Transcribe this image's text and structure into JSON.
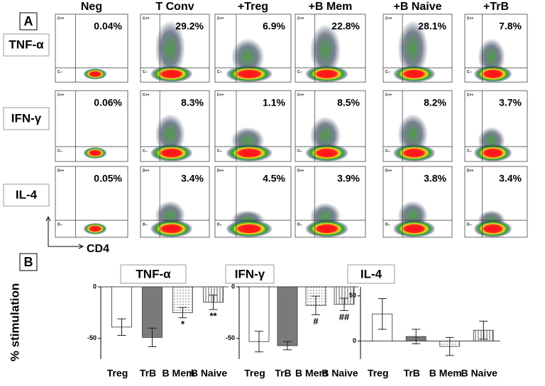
{
  "panel_a": {
    "label": "A",
    "columns": [
      "Neg",
      "T Conv",
      "+Treg",
      "+B Mem",
      "+B Naive",
      "+TrB"
    ],
    "rows": [
      {
        "label": "TNF-α",
        "gates": [
          "C++",
          "C--"
        ],
        "percents": [
          "0.04%",
          "29.2%",
          "6.9%",
          "22.8%",
          "28.1%",
          "7.8%"
        ]
      },
      {
        "label": "IFN-γ",
        "gates": [
          "C++",
          "C--"
        ],
        "percents": [
          "0.06%",
          "8.3%",
          "1.1%",
          "8.5%",
          "8.2%",
          "3.7%"
        ]
      },
      {
        "label": "IL-4",
        "gates": [
          "D++",
          "D--"
        ],
        "percents": [
          "0.05%",
          "3.4%",
          "4.5%",
          "3.9%",
          "3.8%",
          "3.4%"
        ]
      }
    ],
    "x_axis_label": "CD4"
  },
  "panel_b": {
    "label": "B",
    "y_label": "% stimulation"
  },
  "chart_data": [
    {
      "type": "bar",
      "title": "TNF-α",
      "categories": [
        "Treg",
        "TrB",
        "B Mem",
        "B Naive"
      ],
      "values": [
        -39,
        -49,
        -25,
        -15
      ],
      "errors": [
        8,
        9,
        5,
        7
      ],
      "annotations": [
        null,
        null,
        "*",
        "**"
      ],
      "colors": [
        "#ffffff",
        "#7a7a7a",
        "url(#dots)",
        "url(#stripes)"
      ],
      "ylim": [
        -70,
        0
      ],
      "yticks": [
        -50,
        0
      ]
    },
    {
      "type": "bar",
      "title": "IFN-γ",
      "categories": [
        "Treg",
        "TrB",
        "B Mem",
        "B Naive"
      ],
      "values": [
        -53,
        -57,
        -18,
        -17
      ],
      "errors": [
        10,
        4,
        9,
        6
      ],
      "annotations": [
        null,
        null,
        "#",
        "##"
      ],
      "colors": [
        "#ffffff",
        "#7a7a7a",
        "url(#dots)",
        "url(#stripes)"
      ],
      "ylim": [
        -70,
        0
      ],
      "yticks": [
        -50,
        0
      ]
    },
    {
      "type": "bar",
      "title": "IL-4",
      "categories": [
        "Treg",
        "TrB",
        "B Mem",
        "B Naive"
      ],
      "values": [
        30,
        5,
        -6,
        12
      ],
      "errors": [
        17,
        8,
        10,
        10
      ],
      "annotations": [
        null,
        null,
        null,
        null
      ],
      "colors": [
        "#ffffff",
        "#7a7a7a",
        "url(#dots)",
        "url(#stripes)"
      ],
      "ylim": [
        -20,
        60
      ],
      "yticks": [
        0,
        50
      ]
    }
  ]
}
